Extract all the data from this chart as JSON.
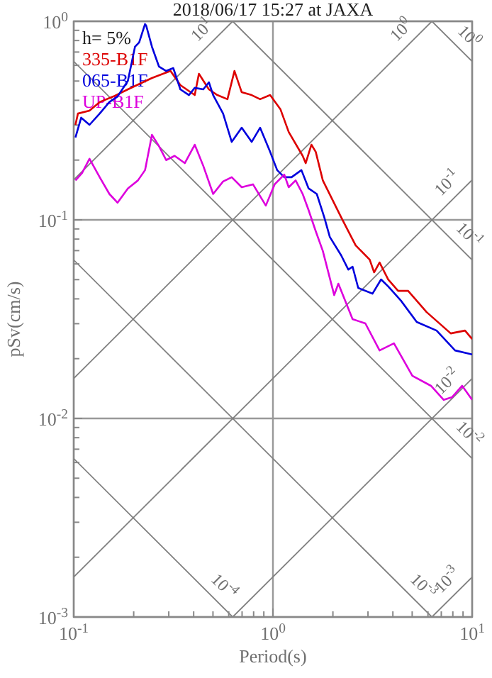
{
  "chart_data": {
    "type": "line",
    "title": "2018/06/17 15:27 at JAXA",
    "xlabel": "Period(s)",
    "ylabel": "pSv(cm/s)",
    "log": "xy",
    "grid": true,
    "legend": "top left",
    "line_style": "solid",
    "xlim": [
      0.1,
      10
    ],
    "ylim": [
      0.001,
      1
    ],
    "xticks": [
      {
        "value": 0.1,
        "label": "10$^{-1}$"
      },
      {
        "value": 0.2,
        "label": null
      },
      {
        "value": 0.3,
        "label": null
      },
      {
        "value": 0.4,
        "label": null
      },
      {
        "value": 0.5,
        "label": null
      },
      {
        "value": 0.6,
        "label": null
      },
      {
        "value": 0.7,
        "label": null
      },
      {
        "value": 0.8,
        "label": null
      },
      {
        "value": 0.9,
        "label": null
      },
      {
        "value": 1,
        "label": "10$^{0}$"
      },
      {
        "value": 2,
        "label": null
      },
      {
        "value": 3,
        "label": null
      },
      {
        "value": 4,
        "label": null
      },
      {
        "value": 5,
        "label": null
      },
      {
        "value": 6,
        "label": null
      },
      {
        "value": 7,
        "label": null
      },
      {
        "value": 8,
        "label": null
      },
      {
        "value": 9,
        "label": null
      },
      {
        "value": 10,
        "label": "10$^{1}$"
      }
    ],
    "yticks": [
      {
        "value": 0.001,
        "label": "10$^{-3}$"
      },
      {
        "value": 0.002,
        "label": null
      },
      {
        "value": 0.003,
        "label": null
      },
      {
        "value": 0.004,
        "label": null
      },
      {
        "value": 0.005,
        "label": null
      },
      {
        "value": 0.006,
        "label": null
      },
      {
        "value": 0.007,
        "label": null
      },
      {
        "value": 0.008,
        "label": null
      },
      {
        "value": 0.009,
        "label": null
      },
      {
        "value": 0.01,
        "label": "10$^{-2}$"
      },
      {
        "value": 0.02,
        "label": null
      },
      {
        "value": 0.03,
        "label": null
      },
      {
        "value": 0.04,
        "label": null
      },
      {
        "value": 0.05,
        "label": null
      },
      {
        "value": 0.06,
        "label": null
      },
      {
        "value": 0.07,
        "label": null
      },
      {
        "value": 0.08,
        "label": null
      },
      {
        "value": 0.09,
        "label": null
      },
      {
        "value": 0.1,
        "label": "10$^{-1}$"
      },
      {
        "value": 0.2,
        "label": null
      },
      {
        "value": 0.3,
        "label": null
      },
      {
        "value": 0.4,
        "label": null
      },
      {
        "value": 0.5,
        "label": null
      },
      {
        "value": 0.6,
        "label": null
      },
      {
        "value": 0.7,
        "label": null
      },
      {
        "value": 0.8,
        "label": null
      },
      {
        "value": 0.9,
        "label": null
      },
      {
        "value": 1,
        "label": "10$^{0}$"
      }
    ],
    "series": [
      {
        "type": "line",
        "color": "#808080",
        "x": [
          6.28,
          10
        ],
        "values": [
          0.001,
          0.00159
        ]
      },
      {
        "type": "line",
        "color": "#808080",
        "x": [
          0.628,
          10
        ],
        "values": [
          0.001,
          0.0159
        ]
      },
      {
        "type": "line",
        "color": "#808080",
        "x": [
          0.1,
          10
        ],
        "values": [
          0.00159,
          0.159
        ]
      },
      {
        "type": "line",
        "color": "#808080",
        "x": [
          0.1,
          6.28
        ],
        "values": [
          0.0159,
          1
        ]
      },
      {
        "type": "line",
        "color": "#808080",
        "x": [
          0.1,
          0.628
        ],
        "values": [
          0.159,
          1
        ]
      },
      {
        "type": "line",
        "color": "#808080",
        "x": [
          0.1,
          0.628
        ],
        "values": [
          0.00628,
          0.001
        ]
      },
      {
        "type": "line",
        "color": "#808080",
        "x": [
          0.1,
          6.28
        ],
        "values": [
          0.0628,
          0.001
        ]
      },
      {
        "type": "line",
        "color": "#808080",
        "x": [
          0.1,
          10
        ],
        "values": [
          0.628,
          0.00628
        ]
      },
      {
        "type": "line",
        "color": "#808080",
        "x": [
          0.628,
          10
        ],
        "values": [
          1,
          0.0628
        ]
      },
      {
        "type": "line",
        "color": "#808080",
        "x": [
          6.28,
          10
        ],
        "values": [
          1,
          0.628
        ]
      },
      {
        "name": "335-B1F",
        "color": "#dd0000",
        "x": [
          0.102,
          0.105,
          0.12,
          0.135,
          0.158,
          0.187,
          0.247,
          0.306,
          0.343,
          0.405,
          0.425,
          0.477,
          0.526,
          0.591,
          0.641,
          0.697,
          0.782,
          0.862,
          0.968,
          1.09,
          1.2,
          1.41,
          1.46,
          1.56,
          1.64,
          1.78,
          2.2,
          2.6,
          3.06,
          3.22,
          3.43,
          3.79,
          4.25,
          4.77,
          5.91,
          7.81,
          9.21,
          10
        ],
        "values": [
          0.301,
          0.343,
          0.355,
          0.392,
          0.418,
          0.454,
          0.518,
          0.562,
          0.477,
          0.425,
          0.544,
          0.454,
          0.425,
          0.405,
          0.562,
          0.439,
          0.425,
          0.405,
          0.425,
          0.361,
          0.277,
          0.21,
          0.193,
          0.239,
          0.22,
          0.158,
          0.103,
          0.0744,
          0.063,
          0.0544,
          0.061,
          0.0501,
          0.0439,
          0.0439,
          0.0343,
          0.0268,
          0.0277,
          0.0251
        ]
      },
      {
        "name": "065-B1F",
        "color": "#0000dd",
        "x": [
          0.102,
          0.109,
          0.12,
          0.135,
          0.151,
          0.166,
          0.187,
          0.203,
          0.213,
          0.228,
          0.231,
          0.247,
          0.268,
          0.291,
          0.316,
          0.343,
          0.379,
          0.405,
          0.447,
          0.477,
          0.501,
          0.562,
          0.621,
          0.697,
          0.782,
          0.862,
          0.968,
          1.05,
          1.14,
          1.24,
          1.39,
          1.51,
          1.66,
          1.81,
          1.93,
          2.2,
          2.39,
          2.51,
          2.68,
          3.16,
          3.49,
          3.79,
          4.39,
          5.27,
          6.63,
          8.21,
          10
        ],
        "values": [
          0.26,
          0.327,
          0.301,
          0.343,
          0.392,
          0.418,
          0.501,
          0.744,
          0.782,
          0.968,
          0.952,
          0.744,
          0.591,
          0.562,
          0.581,
          0.454,
          0.425,
          0.462,
          0.454,
          0.493,
          0.425,
          0.343,
          0.247,
          0.291,
          0.247,
          0.291,
          0.22,
          0.178,
          0.164,
          0.164,
          0.178,
          0.144,
          0.135,
          0.103,
          0.082,
          0.0663,
          0.0562,
          0.0581,
          0.0454,
          0.0425,
          0.0501,
          0.0462,
          0.0392,
          0.0306,
          0.0277,
          0.022,
          0.021
        ]
      },
      {
        "name": "UP-B1F",
        "color": "#dd00dd",
        "x": [
          0.102,
          0.11,
          0.12,
          0.135,
          0.151,
          0.166,
          0.187,
          0.21,
          0.228,
          0.247,
          0.268,
          0.291,
          0.321,
          0.361,
          0.405,
          0.447,
          0.501,
          0.562,
          0.621,
          0.697,
          0.794,
          0.921,
          1.02,
          1.14,
          1.2,
          1.3,
          1.41,
          1.51,
          1.64,
          1.78,
          2.03,
          2.13,
          2.51,
          2.91,
          3.43,
          4.05,
          5.01,
          6.21,
          7.2,
          7.94,
          8.91,
          10
        ],
        "values": [
          0.158,
          0.172,
          0.203,
          0.164,
          0.135,
          0.122,
          0.144,
          0.158,
          0.178,
          0.268,
          0.235,
          0.2,
          0.21,
          0.193,
          0.239,
          0.187,
          0.135,
          0.156,
          0.164,
          0.146,
          0.151,
          0.118,
          0.151,
          0.169,
          0.146,
          0.158,
          0.135,
          0.112,
          0.0877,
          0.0697,
          0.0418,
          0.0477,
          0.0316,
          0.0301,
          0.022,
          0.0239,
          0.0164,
          0.0146,
          0.0124,
          0.0128,
          0.0146,
          0.0124
        ]
      }
    ],
    "annotations": [
      "h= 5%",
      {
        "text": "10$^{1}$",
        "x": 0.5,
        "y": 0.796
      },
      {
        "text": "10$^{0}$",
        "x": 5,
        "y": 0.796
      },
      {
        "text": "10$^{-1}$",
        "x": 8.5,
        "y": 0.135
      },
      {
        "text": "10$^{-2}$",
        "x": 8.5,
        "y": 0.0135
      },
      {
        "text": "10$^{-3}$",
        "x": 8.5,
        "y": 0.00135
      },
      {
        "text": "10$^{0}$",
        "x": 8.5,
        "y": 0.739
      },
      {
        "text": "10$^{-1}$",
        "x": 8.5,
        "y": 0.0739
      },
      {
        "text": "10$^{-2}$",
        "x": 8.5,
        "y": 0.00739
      },
      {
        "text": "10$^{-3}$",
        "x": 5,
        "y": 0.00126
      },
      {
        "text": "10$^{-4}$",
        "x": 0.5,
        "y": 0.00126
      }
    ]
  }
}
